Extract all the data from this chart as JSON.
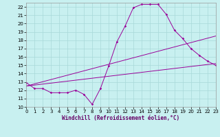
{
  "xlabel": "Windchill (Refroidissement éolien,°C)",
  "bg_color": "#c8f0f0",
  "grid_color": "#a8d8d8",
  "line_color": "#990099",
  "xlim": [
    0,
    23
  ],
  "ylim": [
    10,
    22.5
  ],
  "xticks": [
    0,
    1,
    2,
    3,
    4,
    5,
    6,
    7,
    8,
    9,
    10,
    11,
    12,
    13,
    14,
    15,
    16,
    17,
    18,
    19,
    20,
    21,
    22,
    23
  ],
  "yticks": [
    10,
    11,
    12,
    13,
    14,
    15,
    16,
    17,
    18,
    19,
    20,
    21,
    22
  ],
  "series1_x": [
    0,
    1,
    2,
    3,
    4,
    5,
    6,
    7,
    8,
    9,
    10,
    11,
    12,
    13,
    14,
    15,
    16,
    17,
    18,
    19,
    20,
    21,
    22,
    23
  ],
  "series1_y": [
    12.9,
    12.2,
    12.2,
    11.7,
    11.7,
    11.7,
    12.0,
    11.5,
    10.3,
    12.2,
    14.9,
    17.8,
    19.7,
    21.9,
    22.3,
    22.3,
    22.3,
    21.1,
    19.2,
    18.2,
    17.0,
    16.2,
    15.5,
    15.0
  ],
  "series2_x": [
    0,
    23
  ],
  "series2_y": [
    12.5,
    18.5
  ],
  "series3_x": [
    0,
    23
  ],
  "series3_y": [
    12.5,
    15.2
  ],
  "tick_fontsize": 5.0,
  "xlabel_fontsize": 5.5
}
